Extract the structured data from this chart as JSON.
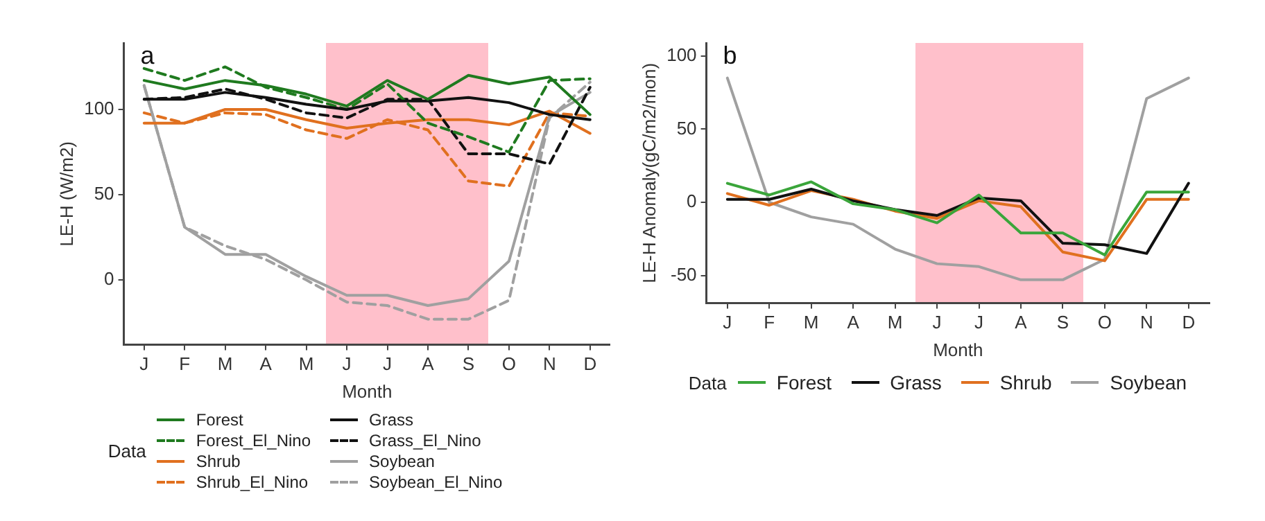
{
  "chart_data": [
    {
      "type": "line",
      "title": "a",
      "xlabel": "Month",
      "ylabel": "LE-H (W/m2)",
      "legend_title": "Data",
      "legend": "bottom",
      "grid": false,
      "categories": [
        "J",
        "F",
        "M",
        "A",
        "M",
        "J",
        "J",
        "A",
        "S",
        "O",
        "N",
        "D"
      ],
      "ylim": [
        -38,
        139
      ],
      "yticks": [
        0,
        50,
        100
      ],
      "series": [
        {
          "name": "Forest",
          "color": "#1f7a1f",
          "values": [
            117,
            112,
            117,
            114,
            109,
            102,
            117,
            106,
            120,
            115,
            119,
            97
          ]
        },
        {
          "name": "Grass",
          "color": "#111111",
          "values": [
            106,
            106,
            110,
            107,
            103,
            100,
            105,
            105,
            107,
            104,
            97,
            94
          ]
        },
        {
          "name": "Forest_El_Nino",
          "color": "#1f7a1f",
          "line_style": "dashed",
          "values": [
            124,
            117,
            125,
            113,
            107,
            100,
            115,
            92,
            84,
            75,
            117,
            118
          ]
        },
        {
          "name": "Grass_El_Nino",
          "color": "#111111",
          "line_style": "dashed",
          "values": [
            106,
            107,
            112,
            106,
            98,
            95,
            106,
            106,
            74,
            74,
            68,
            113
          ]
        },
        {
          "name": "Shrub",
          "color": "#e0701f",
          "values": [
            92,
            92,
            100,
            100,
            94,
            89,
            92,
            94,
            94,
            91,
            99,
            86
          ]
        },
        {
          "name": "Soybean",
          "color": "#a0a0a0",
          "values": [
            114,
            31,
            15,
            15,
            2,
            -9,
            -9,
            -15,
            -11,
            11,
            96,
            110
          ]
        },
        {
          "name": "Shrub_El_Nino",
          "color": "#e0701f",
          "line_style": "dashed",
          "values": [
            98,
            92,
            98,
            97,
            88,
            83,
            94,
            88,
            58,
            55,
            98,
            96
          ]
        },
        {
          "name": "Soybean_El_Nino",
          "color": "#a0a0a0",
          "line_style": "dashed",
          "values": [
            114,
            31,
            20,
            12,
            0,
            -13,
            -15,
            -23,
            -23,
            -12,
            95,
            116
          ]
        }
      ]
    },
    {
      "type": "line",
      "title": "b",
      "xlabel": "Month",
      "ylabel": "LE-H Anomaly(gC/m2/mon)",
      "legend_title": "Data",
      "legend": "bottom",
      "grid": false,
      "categories": [
        "J",
        "F",
        "M",
        "A",
        "M",
        "J",
        "J",
        "A",
        "S",
        "O",
        "N",
        "D"
      ],
      "ylim": [
        -69,
        109
      ],
      "yticks": [
        -50,
        0,
        50,
        100
      ],
      "series": [
        {
          "name": "Forest",
          "color": "#3aa53a",
          "values": [
            13,
            5,
            14,
            -1,
            -5,
            -14,
            5,
            -21,
            -21,
            -36,
            7,
            7
          ]
        },
        {
          "name": "Grass",
          "color": "#111111",
          "values": [
            2,
            2,
            9,
            1,
            -5,
            -9,
            3,
            1,
            -28,
            -29,
            -35,
            13
          ]
        },
        {
          "name": "Shrub",
          "color": "#e0701f",
          "values": [
            6,
            -2,
            8,
            2,
            -6,
            -11,
            1,
            -3,
            -34,
            -40,
            2,
            2
          ]
        },
        {
          "name": "Soybean",
          "color": "#a0a0a0",
          "values": [
            85,
            0,
            -10,
            -15,
            -32,
            -42,
            -44,
            -53,
            -53,
            -39,
            71,
            85
          ]
        }
      ]
    }
  ]
}
